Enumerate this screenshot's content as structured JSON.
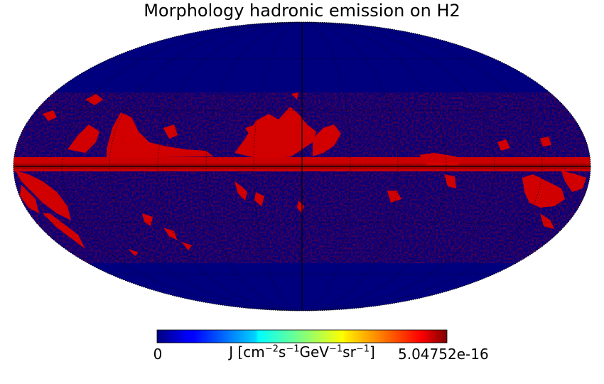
{
  "title": "Morphology hadronic emission on H2",
  "projection": "mollweide",
  "colormap": "jet",
  "background_color": "#00007f",
  "colorbar": {
    "min_label": "0",
    "max_label": "5.04752e-16",
    "unit_label": "J [cm⁻²s⁻¹GeV⁻¹sr⁻¹]",
    "unit_parts": {
      "a": "J [cm",
      "a_sup": "−2",
      "b": "s",
      "b_sup": "−1",
      "c": "GeV",
      "c_sup": "−1",
      "d": "sr",
      "d_sup": "−1",
      "e": "]"
    },
    "min_value": 0,
    "max_value": 5.04752e-16
  },
  "graticule": {
    "meridian_step_deg": 30,
    "parallel_step_deg": 30,
    "style": "dotted"
  }
}
